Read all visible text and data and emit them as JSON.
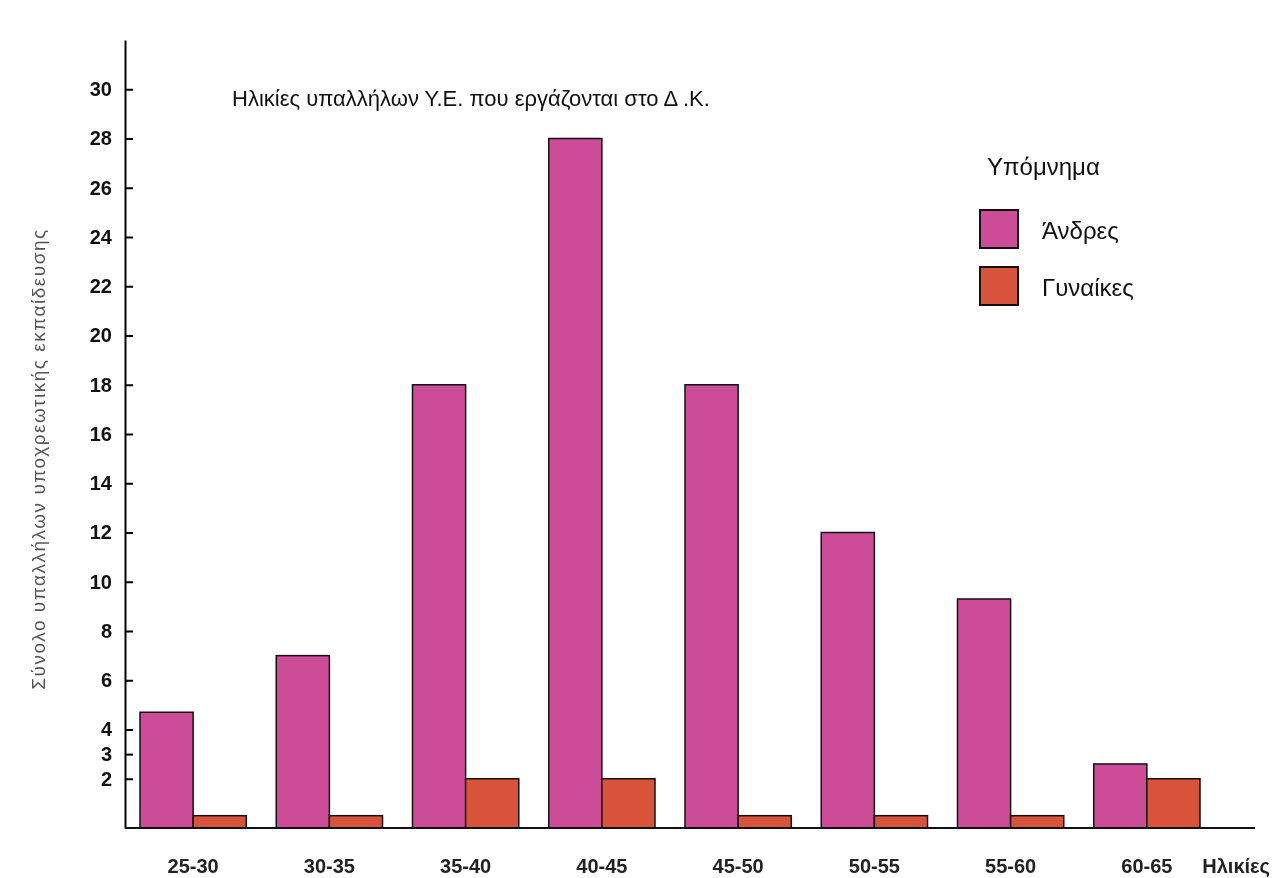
{
  "chart_data": {
    "type": "bar",
    "title": "Ηλικίες υπαλλήλων Υ.Ε. που εργάζονται στο Δ .Κ.",
    "xlabel": "Ηλικίες",
    "ylabel": "Σύνολο υπαλλήλων υποχρεωτικής εκπαίδευσης",
    "legend_title": "Υπόμνημα",
    "legend": "top right",
    "grid": false,
    "categories": [
      "25-30",
      "30-35",
      "35-40",
      "40-45",
      "45-50",
      "50-55",
      "55-60",
      "60-65"
    ],
    "series": [
      {
        "name": "Άνδρες",
        "color": "#cc4c97",
        "values": [
          4.7,
          7,
          18,
          28,
          18,
          12,
          9.3,
          2.6
        ]
      },
      {
        "name": "Γυναίκες",
        "color": "#d9533a",
        "values": [
          0.5,
          0.5,
          2,
          2,
          0.5,
          0.5,
          0.5,
          2
        ]
      }
    ],
    "ylim": [
      0,
      32
    ],
    "yticks": [
      2,
      3,
      4,
      6,
      8,
      10,
      12,
      14,
      16,
      18,
      20,
      22,
      24,
      26,
      28,
      30
    ]
  }
}
